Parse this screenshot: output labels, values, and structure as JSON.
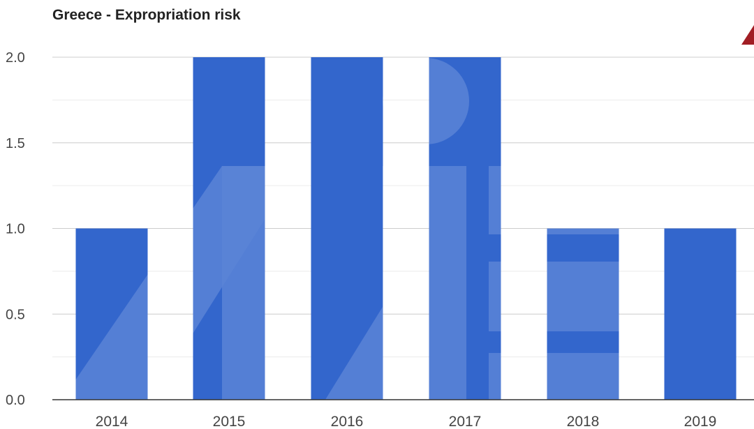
{
  "chart_data": {
    "type": "bar",
    "title": "Greece - Expropriation risk",
    "categories": [
      "2014",
      "2015",
      "2016",
      "2017",
      "2018",
      "2019"
    ],
    "values": [
      1,
      2,
      2,
      2,
      1,
      1
    ],
    "xlabel": "",
    "ylabel": "",
    "ylim": [
      0,
      2
    ],
    "yticks": [
      "0.0",
      "0.5",
      "1.0",
      "1.5",
      "2.0"
    ],
    "grid": true,
    "legend": "none",
    "bar_color": "#3366cc",
    "watermark_color": "#5a84d6"
  }
}
